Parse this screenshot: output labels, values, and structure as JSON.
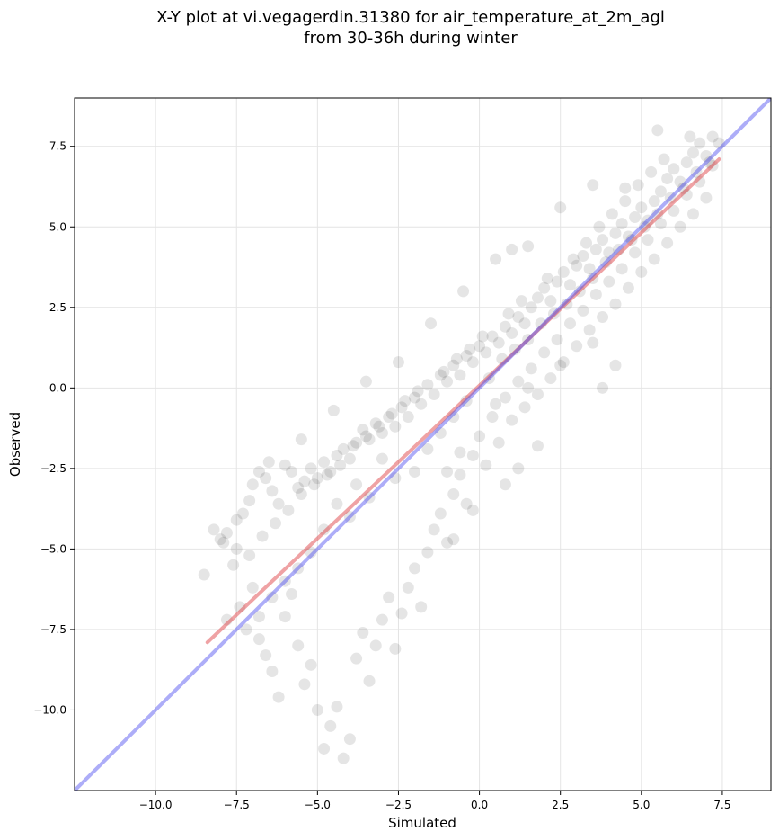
{
  "chart_data": {
    "type": "scatter",
    "title_line1": "X-Y plot at vi.vegagerdin.31380 for air_temperature_at_2m_agl",
    "title_line2": "from 30-36h during winter",
    "xlabel": "Simulated",
    "ylabel": "Observed",
    "xlim": [
      -12.5,
      9.0
    ],
    "ylim": [
      -12.5,
      9.0
    ],
    "xticks": [
      -10.0,
      -7.5,
      -5.0,
      -2.5,
      0.0,
      2.5,
      5.0,
      7.5
    ],
    "yticks": [
      -10.0,
      -7.5,
      -5.0,
      -2.5,
      0.0,
      2.5,
      5.0,
      7.5
    ],
    "xtick_labels": [
      "−10.0",
      "−7.5",
      "−5.0",
      "−2.5",
      "0.0",
      "2.5",
      "5.0",
      "7.5"
    ],
    "ytick_labels": [
      "−10.0",
      "−7.5",
      "−5.0",
      "−2.5",
      "0.0",
      "2.5",
      "5.0",
      "7.5"
    ],
    "grid": true,
    "point_color": "#000000",
    "point_alpha": 0.1,
    "points": [
      [
        -8.5,
        -5.8
      ],
      [
        -8.2,
        -4.4
      ],
      [
        -8.0,
        -4.7
      ],
      [
        -7.8,
        -4.5
      ],
      [
        -7.6,
        -5.5
      ],
      [
        -7.5,
        -4.1
      ],
      [
        -7.3,
        -3.9
      ],
      [
        -7.1,
        -3.5
      ],
      [
        -7.0,
        -3.0
      ],
      [
        -6.8,
        -2.6
      ],
      [
        -6.6,
        -2.8
      ],
      [
        -6.4,
        -3.2
      ],
      [
        -6.2,
        -3.6
      ],
      [
        -6.0,
        -2.4
      ],
      [
        -5.8,
        -2.6
      ],
      [
        -5.6,
        -3.1
      ],
      [
        -5.4,
        -2.9
      ],
      [
        -5.2,
        -2.5
      ],
      [
        -5.0,
        -2.8
      ],
      [
        -4.8,
        -2.3
      ],
      [
        -4.6,
        -2.6
      ],
      [
        -4.4,
        -2.1
      ],
      [
        -4.2,
        -1.9
      ],
      [
        -4.0,
        -2.2
      ],
      [
        -3.8,
        -1.7
      ],
      [
        -3.6,
        -1.3
      ],
      [
        -3.4,
        -1.6
      ],
      [
        -3.2,
        -1.1
      ],
      [
        -3.0,
        -1.4
      ],
      [
        -2.8,
        -0.9
      ],
      [
        -2.6,
        -1.2
      ],
      [
        -2.4,
        -0.6
      ],
      [
        -2.2,
        -0.9
      ],
      [
        -2.0,
        -0.3
      ],
      [
        -1.8,
        -0.5
      ],
      [
        -1.6,
        0.1
      ],
      [
        -1.4,
        -0.2
      ],
      [
        -1.2,
        0.4
      ],
      [
        -1.0,
        0.2
      ],
      [
        -0.8,
        0.7
      ],
      [
        -0.6,
        0.4
      ],
      [
        -0.4,
        1.0
      ],
      [
        -0.2,
        0.8
      ],
      [
        0.0,
        1.3
      ],
      [
        0.2,
        1.1
      ],
      [
        0.4,
        1.6
      ],
      [
        0.6,
        1.4
      ],
      [
        0.8,
        1.9
      ],
      [
        1.0,
        1.7
      ],
      [
        1.2,
        2.2
      ],
      [
        1.4,
        2.0
      ],
      [
        1.6,
        2.5
      ],
      [
        1.8,
        2.8
      ],
      [
        2.0,
        3.1
      ],
      [
        2.2,
        2.7
      ],
      [
        2.4,
        3.3
      ],
      [
        2.6,
        3.6
      ],
      [
        2.8,
        3.2
      ],
      [
        3.0,
        3.8
      ],
      [
        3.2,
        4.1
      ],
      [
        3.4,
        3.7
      ],
      [
        3.6,
        4.3
      ],
      [
        3.8,
        4.6
      ],
      [
        4.0,
        4.2
      ],
      [
        4.2,
        4.8
      ],
      [
        4.4,
        5.1
      ],
      [
        4.6,
        4.7
      ],
      [
        4.8,
        5.3
      ],
      [
        5.0,
        5.6
      ],
      [
        5.2,
        5.2
      ],
      [
        5.4,
        5.8
      ],
      [
        5.6,
        6.1
      ],
      [
        5.8,
        6.5
      ],
      [
        6.0,
        6.8
      ],
      [
        6.2,
        6.4
      ],
      [
        6.4,
        7.0
      ],
      [
        6.6,
        7.3
      ],
      [
        6.8,
        7.6
      ],
      [
        7.0,
        7.2
      ],
      [
        7.2,
        7.8
      ],
      [
        -7.8,
        -7.2
      ],
      [
        -7.4,
        -6.8
      ],
      [
        -7.0,
        -6.2
      ],
      [
        -6.8,
        -7.8
      ],
      [
        -6.6,
        -8.3
      ],
      [
        -6.4,
        -8.8
      ],
      [
        -6.2,
        -9.6
      ],
      [
        -6.0,
        -7.1
      ],
      [
        -5.8,
        -6.4
      ],
      [
        -5.6,
        -8.0
      ],
      [
        -5.4,
        -9.2
      ],
      [
        -5.2,
        -8.6
      ],
      [
        -5.0,
        -10.0
      ],
      [
        -4.8,
        -11.2
      ],
      [
        -4.6,
        -10.5
      ],
      [
        -4.4,
        -9.9
      ],
      [
        -4.2,
        -11.5
      ],
      [
        -4.0,
        -10.9
      ],
      [
        -3.8,
        -8.4
      ],
      [
        -3.6,
        -7.6
      ],
      [
        -3.4,
        -9.1
      ],
      [
        -3.2,
        -8.0
      ],
      [
        -3.0,
        -7.2
      ],
      [
        -2.8,
        -6.5
      ],
      [
        -2.6,
        -8.1
      ],
      [
        -2.4,
        -7.0
      ],
      [
        -2.2,
        -6.2
      ],
      [
        -2.0,
        -5.6
      ],
      [
        -1.8,
        -6.8
      ],
      [
        -1.6,
        -5.1
      ],
      [
        -1.4,
        -4.4
      ],
      [
        -1.2,
        -3.9
      ],
      [
        -1.0,
        -4.8
      ],
      [
        -0.8,
        -3.3
      ],
      [
        -0.6,
        -2.7
      ],
      [
        -0.4,
        -3.6
      ],
      [
        -0.2,
        -2.1
      ],
      [
        0.0,
        -1.5
      ],
      [
        0.2,
        -2.4
      ],
      [
        0.4,
        -0.9
      ],
      [
        0.6,
        -1.7
      ],
      [
        0.8,
        -0.3
      ],
      [
        1.0,
        -1.0
      ],
      [
        1.2,
        0.2
      ],
      [
        1.4,
        -0.6
      ],
      [
        1.6,
        0.6
      ],
      [
        1.8,
        -0.2
      ],
      [
        2.0,
        1.1
      ],
      [
        2.2,
        0.3
      ],
      [
        2.4,
        1.5
      ],
      [
        2.6,
        0.8
      ],
      [
        2.8,
        2.0
      ],
      [
        3.0,
        1.3
      ],
      [
        3.2,
        2.4
      ],
      [
        3.4,
        1.8
      ],
      [
        3.6,
        2.9
      ],
      [
        3.8,
        2.2
      ],
      [
        4.0,
        3.3
      ],
      [
        4.2,
        2.6
      ],
      [
        4.4,
        3.7
      ],
      [
        4.6,
        3.1
      ],
      [
        4.8,
        4.2
      ],
      [
        5.0,
        3.6
      ],
      [
        5.2,
        4.6
      ],
      [
        5.4,
        4.0
      ],
      [
        5.6,
        5.1
      ],
      [
        5.8,
        4.5
      ],
      [
        6.0,
        5.5
      ],
      [
        6.2,
        5.0
      ],
      [
        6.4,
        6.0
      ],
      [
        6.6,
        5.4
      ],
      [
        6.8,
        6.4
      ],
      [
        7.0,
        5.9
      ],
      [
        7.2,
        6.9
      ],
      [
        7.4,
        7.6
      ],
      [
        5.5,
        8.0
      ],
      [
        6.5,
        7.8
      ],
      [
        4.5,
        6.2
      ],
      [
        3.5,
        6.3
      ],
      [
        2.5,
        5.6
      ],
      [
        1.0,
        4.3
      ],
      [
        1.5,
        4.4
      ],
      [
        0.5,
        4.0
      ],
      [
        -0.5,
        3.0
      ],
      [
        -1.5,
        2.0
      ],
      [
        -2.5,
        0.8
      ],
      [
        -3.5,
        0.2
      ],
      [
        -4.5,
        -0.7
      ],
      [
        -5.5,
        -1.6
      ],
      [
        -6.5,
        -2.3
      ],
      [
        -3.0,
        -2.2
      ],
      [
        -2.6,
        -2.8
      ],
      [
        -3.4,
        -3.4
      ],
      [
        -4.0,
        -4.0
      ],
      [
        -3.8,
        -3.0
      ],
      [
        -4.4,
        -3.6
      ],
      [
        -4.8,
        -4.4
      ],
      [
        -5.2,
        -5.1
      ],
      [
        -5.6,
        -5.6
      ],
      [
        -6.0,
        -6.0
      ],
      [
        -6.4,
        -6.5
      ],
      [
        -6.8,
        -7.1
      ],
      [
        -7.2,
        -7.5
      ],
      [
        -2.0,
        -2.6
      ],
      [
        -1.6,
        -1.9
      ],
      [
        -1.2,
        -1.4
      ],
      [
        -0.8,
        -0.9
      ],
      [
        -0.4,
        -0.4
      ],
      [
        0.3,
        0.3
      ],
      [
        0.7,
        0.9
      ],
      [
        1.1,
        1.2
      ],
      [
        1.5,
        1.5
      ],
      [
        1.9,
        2.0
      ],
      [
        2.3,
        2.3
      ],
      [
        2.7,
        2.6
      ],
      [
        3.1,
        3.0
      ],
      [
        3.5,
        3.4
      ],
      [
        3.9,
        3.9
      ],
      [
        4.3,
        4.3
      ],
      [
        4.7,
        4.6
      ],
      [
        5.1,
        5.0
      ],
      [
        5.5,
        5.4
      ],
      [
        5.9,
        5.9
      ],
      [
        6.3,
        6.2
      ],
      [
        6.7,
        6.7
      ],
      [
        7.1,
        7.0
      ],
      [
        3.3,
        4.5
      ],
      [
        3.7,
        5.0
      ],
      [
        4.1,
        5.4
      ],
      [
        4.5,
        5.8
      ],
      [
        4.9,
        6.3
      ],
      [
        5.3,
        6.7
      ],
      [
        5.7,
        7.1
      ],
      [
        2.9,
        4.0
      ],
      [
        2.1,
        3.4
      ],
      [
        1.3,
        2.7
      ],
      [
        0.9,
        2.3
      ],
      [
        0.1,
        1.6
      ],
      [
        -0.3,
        1.2
      ],
      [
        -0.7,
        0.9
      ],
      [
        -1.1,
        0.5
      ],
      [
        -1.9,
        -0.1
      ],
      [
        -2.3,
        -0.4
      ],
      [
        -2.7,
        -0.8
      ],
      [
        -3.1,
        -1.2
      ],
      [
        -3.5,
        -1.5
      ],
      [
        -3.9,
        -1.8
      ],
      [
        -4.3,
        -2.4
      ],
      [
        -4.7,
        -2.7
      ],
      [
        -5.1,
        -3.0
      ],
      [
        -5.5,
        -3.3
      ],
      [
        -5.9,
        -3.8
      ],
      [
        -6.3,
        -4.2
      ],
      [
        -6.7,
        -4.6
      ],
      [
        -7.1,
        -5.2
      ],
      [
        -7.5,
        -5.0
      ],
      [
        -7.9,
        -4.8
      ],
      [
        -1.0,
        -2.6
      ],
      [
        -0.6,
        -2.0
      ],
      [
        0.5,
        -0.5
      ],
      [
        1.5,
        0.0
      ],
      [
        2.5,
        0.7
      ],
      [
        3.5,
        1.4
      ],
      [
        4.2,
        0.7
      ],
      [
        3.8,
        0.0
      ],
      [
        1.8,
        -1.8
      ],
      [
        1.2,
        -2.5
      ],
      [
        0.8,
        -3.0
      ],
      [
        -0.2,
        -3.8
      ],
      [
        -0.8,
        -4.7
      ]
    ],
    "series": [
      {
        "values": [
          [
            -8.4,
            -7.9
          ],
          [
            7.4,
            7.1
          ]
        ],
        "color": "#e0454a",
        "alpha": 0.5
      },
      {
        "values": [
          [
            -12.5,
            -12.5
          ],
          [
            9.0,
            9.0
          ]
        ],
        "color": "#4a4af0",
        "alpha": 0.45
      }
    ]
  }
}
